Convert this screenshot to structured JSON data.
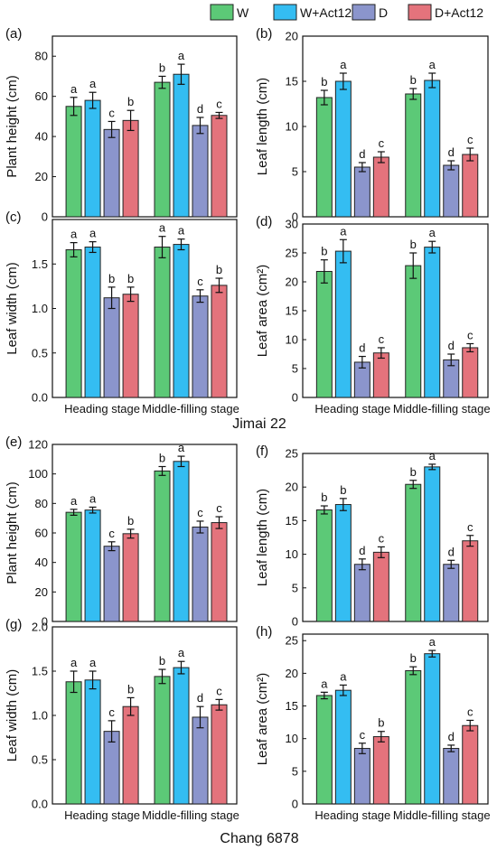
{
  "legend": {
    "items": [
      {
        "label": "W",
        "color": "#5cc977"
      },
      {
        "label": "W+Act12",
        "color": "#34bdf2"
      },
      {
        "label": "D",
        "color": "#8b95cc"
      },
      {
        "label": "D+Act12",
        "color": "#e4737c"
      }
    ]
  },
  "groups": {
    "top": "Jimai 22",
    "bottom": "Chang 6878"
  },
  "chart_data": [
    {
      "type": "bar",
      "panel": "(a)",
      "ylabel": "Plant height (cm)",
      "ylim": [
        0,
        90
      ],
      "yticks": [
        0,
        20,
        40,
        60,
        80
      ],
      "tick_format": "0",
      "categories": [
        "Heading stage",
        "Middle-filling stage"
      ],
      "show_xlabels": false,
      "series": [
        {
          "name": "W",
          "values": [
            55,
            67
          ],
          "errors": [
            4.5,
            3
          ],
          "letters": [
            "a",
            "b"
          ]
        },
        {
          "name": "W+Act12",
          "values": [
            58,
            71
          ],
          "errors": [
            4,
            5
          ],
          "letters": [
            "a",
            "a"
          ]
        },
        {
          "name": "D",
          "values": [
            43.5,
            45.5
          ],
          "errors": [
            4,
            4
          ],
          "letters": [
            "c",
            "d"
          ]
        },
        {
          "name": "D+Act12",
          "values": [
            48,
            50.5
          ],
          "errors": [
            5,
            1.5
          ],
          "letters": [
            "b",
            "c"
          ]
        }
      ]
    },
    {
      "type": "bar",
      "panel": "(b)",
      "ylabel": "Leaf length (cm)",
      "ylim": [
        0,
        20
      ],
      "yticks": [
        0,
        5,
        10,
        15,
        20
      ],
      "tick_format": "0",
      "categories": [
        "Heading stage",
        "Middle-filling stage"
      ],
      "show_xlabels": false,
      "series": [
        {
          "name": "W",
          "values": [
            13.2,
            13.6
          ],
          "errors": [
            0.8,
            0.6
          ],
          "letters": [
            "b",
            "b"
          ]
        },
        {
          "name": "W+Act12",
          "values": [
            15,
            15.1
          ],
          "errors": [
            0.9,
            0.8
          ],
          "letters": [
            "a",
            "a"
          ]
        },
        {
          "name": "D",
          "values": [
            5.5,
            5.7
          ],
          "errors": [
            0.5,
            0.5
          ],
          "letters": [
            "d",
            "d"
          ]
        },
        {
          "name": "D+Act12",
          "values": [
            6.6,
            6.9
          ],
          "errors": [
            0.6,
            0.7
          ],
          "letters": [
            "c",
            "c"
          ]
        }
      ]
    },
    {
      "type": "bar",
      "panel": "(c)",
      "ylabel": "Leaf width (cm)",
      "ylim": [
        0,
        2.0
      ],
      "yticks": [
        0,
        0.5,
        1.0,
        1.5
      ],
      "tick_format": "1",
      "categories": [
        "Heading stage",
        "Middle-filling stage"
      ],
      "show_xlabels": true,
      "series": [
        {
          "name": "W",
          "values": [
            1.66,
            1.69
          ],
          "errors": [
            0.08,
            0.12
          ],
          "letters": [
            "a",
            "a"
          ]
        },
        {
          "name": "W+Act12",
          "values": [
            1.69,
            1.72
          ],
          "errors": [
            0.06,
            0.06
          ],
          "letters": [
            "a",
            "a"
          ]
        },
        {
          "name": "D",
          "values": [
            1.12,
            1.14
          ],
          "errors": [
            0.12,
            0.07
          ],
          "letters": [
            "b",
            "c"
          ]
        },
        {
          "name": "D+Act12",
          "values": [
            1.16,
            1.26
          ],
          "errors": [
            0.08,
            0.08
          ],
          "letters": [
            "b",
            "b"
          ]
        }
      ]
    },
    {
      "type": "bar",
      "panel": "(d)",
      "ylabel": "Leaf area (cm²)",
      "ylim": [
        0,
        30
      ],
      "yticks": [
        0,
        5,
        10,
        15,
        20,
        25,
        30
      ],
      "tick_format": "0",
      "categories": [
        "Heading stage",
        "Middle-filling stage"
      ],
      "show_xlabels": true,
      "series": [
        {
          "name": "W",
          "values": [
            21.8,
            22.8
          ],
          "errors": [
            2,
            2.2
          ],
          "letters": [
            "b",
            "b"
          ]
        },
        {
          "name": "W+Act12",
          "values": [
            25.3,
            26
          ],
          "errors": [
            2,
            1
          ],
          "letters": [
            "a",
            "a"
          ]
        },
        {
          "name": "D",
          "values": [
            6.1,
            6.5
          ],
          "errors": [
            1,
            1
          ],
          "letters": [
            "d",
            "d"
          ]
        },
        {
          "name": "D+Act12",
          "values": [
            7.7,
            8.6
          ],
          "errors": [
            0.9,
            0.7
          ],
          "letters": [
            "c",
            "c"
          ]
        }
      ]
    },
    {
      "type": "bar",
      "panel": "(e)",
      "ylabel": "Plant height (cm)",
      "ylim": [
        0,
        120
      ],
      "yticks": [
        0,
        20,
        40,
        60,
        80,
        100,
        120
      ],
      "tick_format": "0",
      "categories": [
        "Heading stage",
        "Middle-filling stage"
      ],
      "show_xlabels": false,
      "series": [
        {
          "name": "W",
          "values": [
            74,
            102
          ],
          "errors": [
            2,
            3
          ],
          "letters": [
            "a",
            "b"
          ]
        },
        {
          "name": "W+Act12",
          "values": [
            75.5,
            108.5
          ],
          "errors": [
            2,
            3.5
          ],
          "letters": [
            "a",
            "a"
          ]
        },
        {
          "name": "D",
          "values": [
            51,
            64
          ],
          "errors": [
            3,
            4
          ],
          "letters": [
            "c",
            "c"
          ]
        },
        {
          "name": "D+Act12",
          "values": [
            59.5,
            67
          ],
          "errors": [
            3,
            4
          ],
          "letters": [
            "b",
            "c"
          ]
        }
      ]
    },
    {
      "type": "bar",
      "panel": "(f)",
      "ylabel": "Leaf length (cm)",
      "ylim": [
        0,
        25
      ],
      "yticks": [
        0,
        5,
        10,
        15,
        20,
        25
      ],
      "tick_format": "0",
      "categories": [
        "Heading stage",
        "Middle-filling stage"
      ],
      "show_xlabels": false,
      "series": [
        {
          "name": "W",
          "values": [
            16.6,
            20.4
          ],
          "errors": [
            0.6,
            0.6
          ],
          "letters": [
            "b",
            "b"
          ]
        },
        {
          "name": "W+Act12",
          "values": [
            17.4,
            23
          ],
          "errors": [
            0.9,
            0.4
          ],
          "letters": [
            "b",
            "a"
          ]
        },
        {
          "name": "D",
          "values": [
            8.5,
            8.5
          ],
          "errors": [
            0.8,
            0.6
          ],
          "letters": [
            "d",
            "d"
          ]
        },
        {
          "name": "D+Act12",
          "values": [
            10.3,
            12
          ],
          "errors": [
            0.8,
            0.8
          ],
          "letters": [
            "c",
            "c"
          ]
        }
      ]
    },
    {
      "type": "bar",
      "panel": "(g)",
      "ylabel": "Leaf width (cm)",
      "ylim": [
        0,
        2.0
      ],
      "yticks": [
        0,
        0.5,
        1.0,
        1.5,
        2.0
      ],
      "tick_format": "1",
      "categories": [
        "Heading stage",
        "Middle-filling stage"
      ],
      "show_xlabels": true,
      "series": [
        {
          "name": "W",
          "values": [
            1.38,
            1.44
          ],
          "errors": [
            0.12,
            0.08
          ],
          "letters": [
            "a",
            "b"
          ]
        },
        {
          "name": "W+Act12",
          "values": [
            1.4,
            1.54
          ],
          "errors": [
            0.1,
            0.07
          ],
          "letters": [
            "a",
            "a"
          ]
        },
        {
          "name": "D",
          "values": [
            0.82,
            0.98
          ],
          "errors": [
            0.12,
            0.12
          ],
          "letters": [
            "c",
            "d"
          ]
        },
        {
          "name": "D+Act12",
          "values": [
            1.1,
            1.12
          ],
          "errors": [
            0.1,
            0.06
          ],
          "letters": [
            "b",
            "c"
          ]
        }
      ]
    },
    {
      "type": "bar",
      "panel": "(h)",
      "ylabel": "Leaf area (cm²)",
      "ylim": [
        0,
        26
      ],
      "yticks": [
        0,
        5,
        10,
        15,
        20,
        25
      ],
      "tick_format": "0",
      "categories": [
        "Heading stage",
        "Middle-filling stage"
      ],
      "show_xlabels": true,
      "series": [
        {
          "name": "W",
          "values": [
            16.6,
            20.4
          ],
          "errors": [
            0.5,
            0.6
          ],
          "letters": [
            "a",
            "b"
          ]
        },
        {
          "name": "W+Act12",
          "values": [
            17.4,
            23
          ],
          "errors": [
            0.8,
            0.5
          ],
          "letters": [
            "a",
            "a"
          ]
        },
        {
          "name": "D",
          "values": [
            8.5,
            8.5
          ],
          "errors": [
            0.8,
            0.5
          ],
          "letters": [
            "c",
            "d"
          ]
        },
        {
          "name": "D+Act12",
          "values": [
            10.3,
            12
          ],
          "errors": [
            0.8,
            0.8
          ],
          "letters": [
            "b",
            "c"
          ]
        }
      ]
    }
  ]
}
